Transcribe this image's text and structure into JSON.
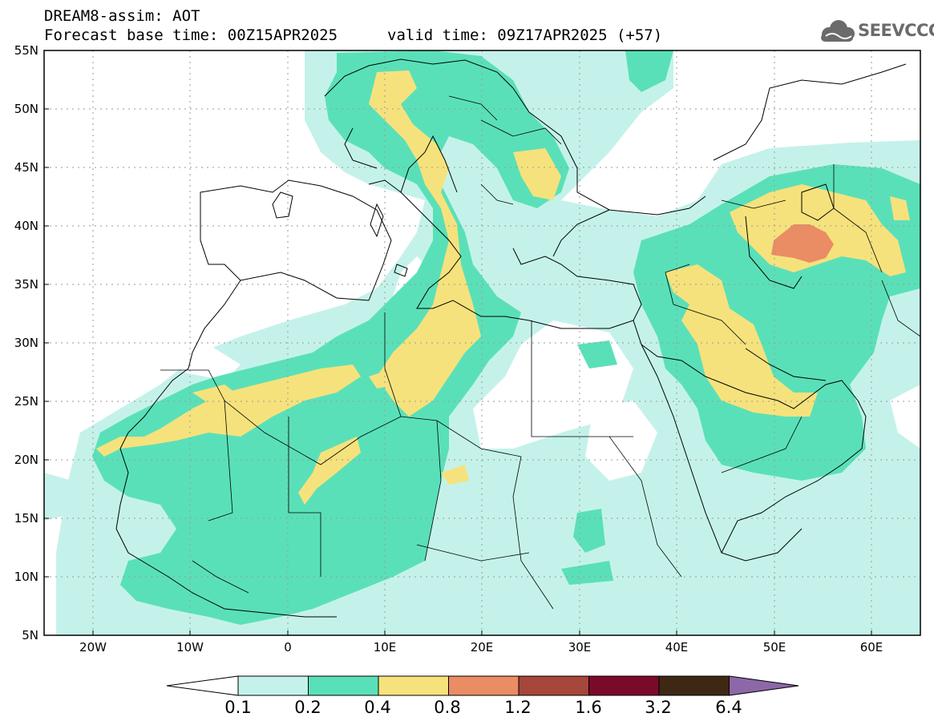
{
  "header": {
    "title": "DREAM8-assim: AOT",
    "base_time": "Forecast base time: 00Z15APR2025",
    "valid_time": "valid time: 09Z17APR2025 (+57)"
  },
  "logo": {
    "name": "SEEVCCC",
    "icon": "cloud-logo-icon",
    "color": "#6b6b6b"
  },
  "map": {
    "variable": "AOT",
    "lon_range": [
      -25,
      65
    ],
    "lat_range": [
      5,
      55
    ],
    "grid": true,
    "lat_labels": [
      "55N",
      "50N",
      "45N",
      "40N",
      "35N",
      "30N",
      "25N",
      "20N",
      "15N",
      "10N",
      "5N"
    ],
    "lon_labels": [
      "20W",
      "10W",
      "0",
      "10E",
      "20E",
      "30E",
      "40E",
      "50E",
      "60E"
    ]
  },
  "colorbar": {
    "levels": [
      "0.1",
      "0.2",
      "0.4",
      "0.8",
      "1.2",
      "1.6",
      "3.2",
      "6.4"
    ],
    "colors": [
      "#c4f2ea",
      "#5ae0b8",
      "#f6e27c",
      "#ea8c64",
      "#a5473a",
      "#7a0a2a",
      "#3e2814",
      "#8c68a8"
    ]
  }
}
